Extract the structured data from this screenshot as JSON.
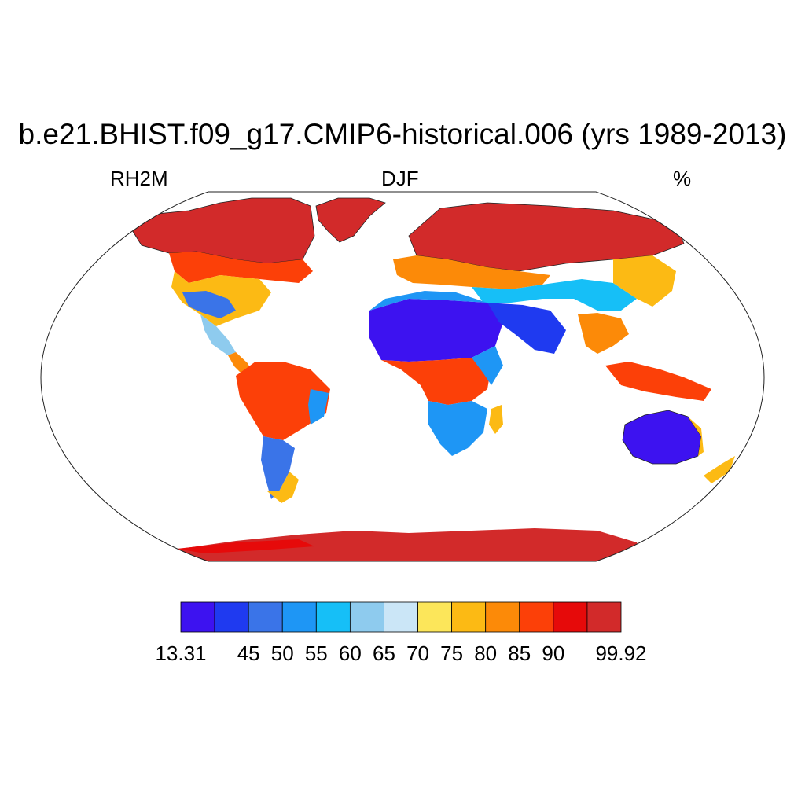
{
  "title": "b.e21.BHIST.f09_g17.CMIP6-historical.006 (yrs 1989-2013)",
  "variable": "RH2M",
  "season": "DJF",
  "units": "%",
  "colorbar": {
    "colors": [
      "#3d12f0",
      "#1f3af0",
      "#3a74e8",
      "#1e96f5",
      "#16bff7",
      "#8ecbee",
      "#cbe6f7",
      "#fce65a",
      "#fcba14",
      "#fc8a08",
      "#fc4008",
      "#e60a0a",
      "#d22a2a"
    ],
    "labels": [
      "13.31",
      "45",
      "50",
      "55",
      "60",
      "65",
      "70",
      "75",
      "80",
      "85",
      "90",
      "99.92"
    ],
    "label_boundaries": [
      0,
      2,
      3,
      4,
      5,
      6,
      7,
      8,
      9,
      10,
      11,
      13
    ]
  },
  "icons": {
    "land": "land-region",
    "ocean": "ocean"
  }
}
